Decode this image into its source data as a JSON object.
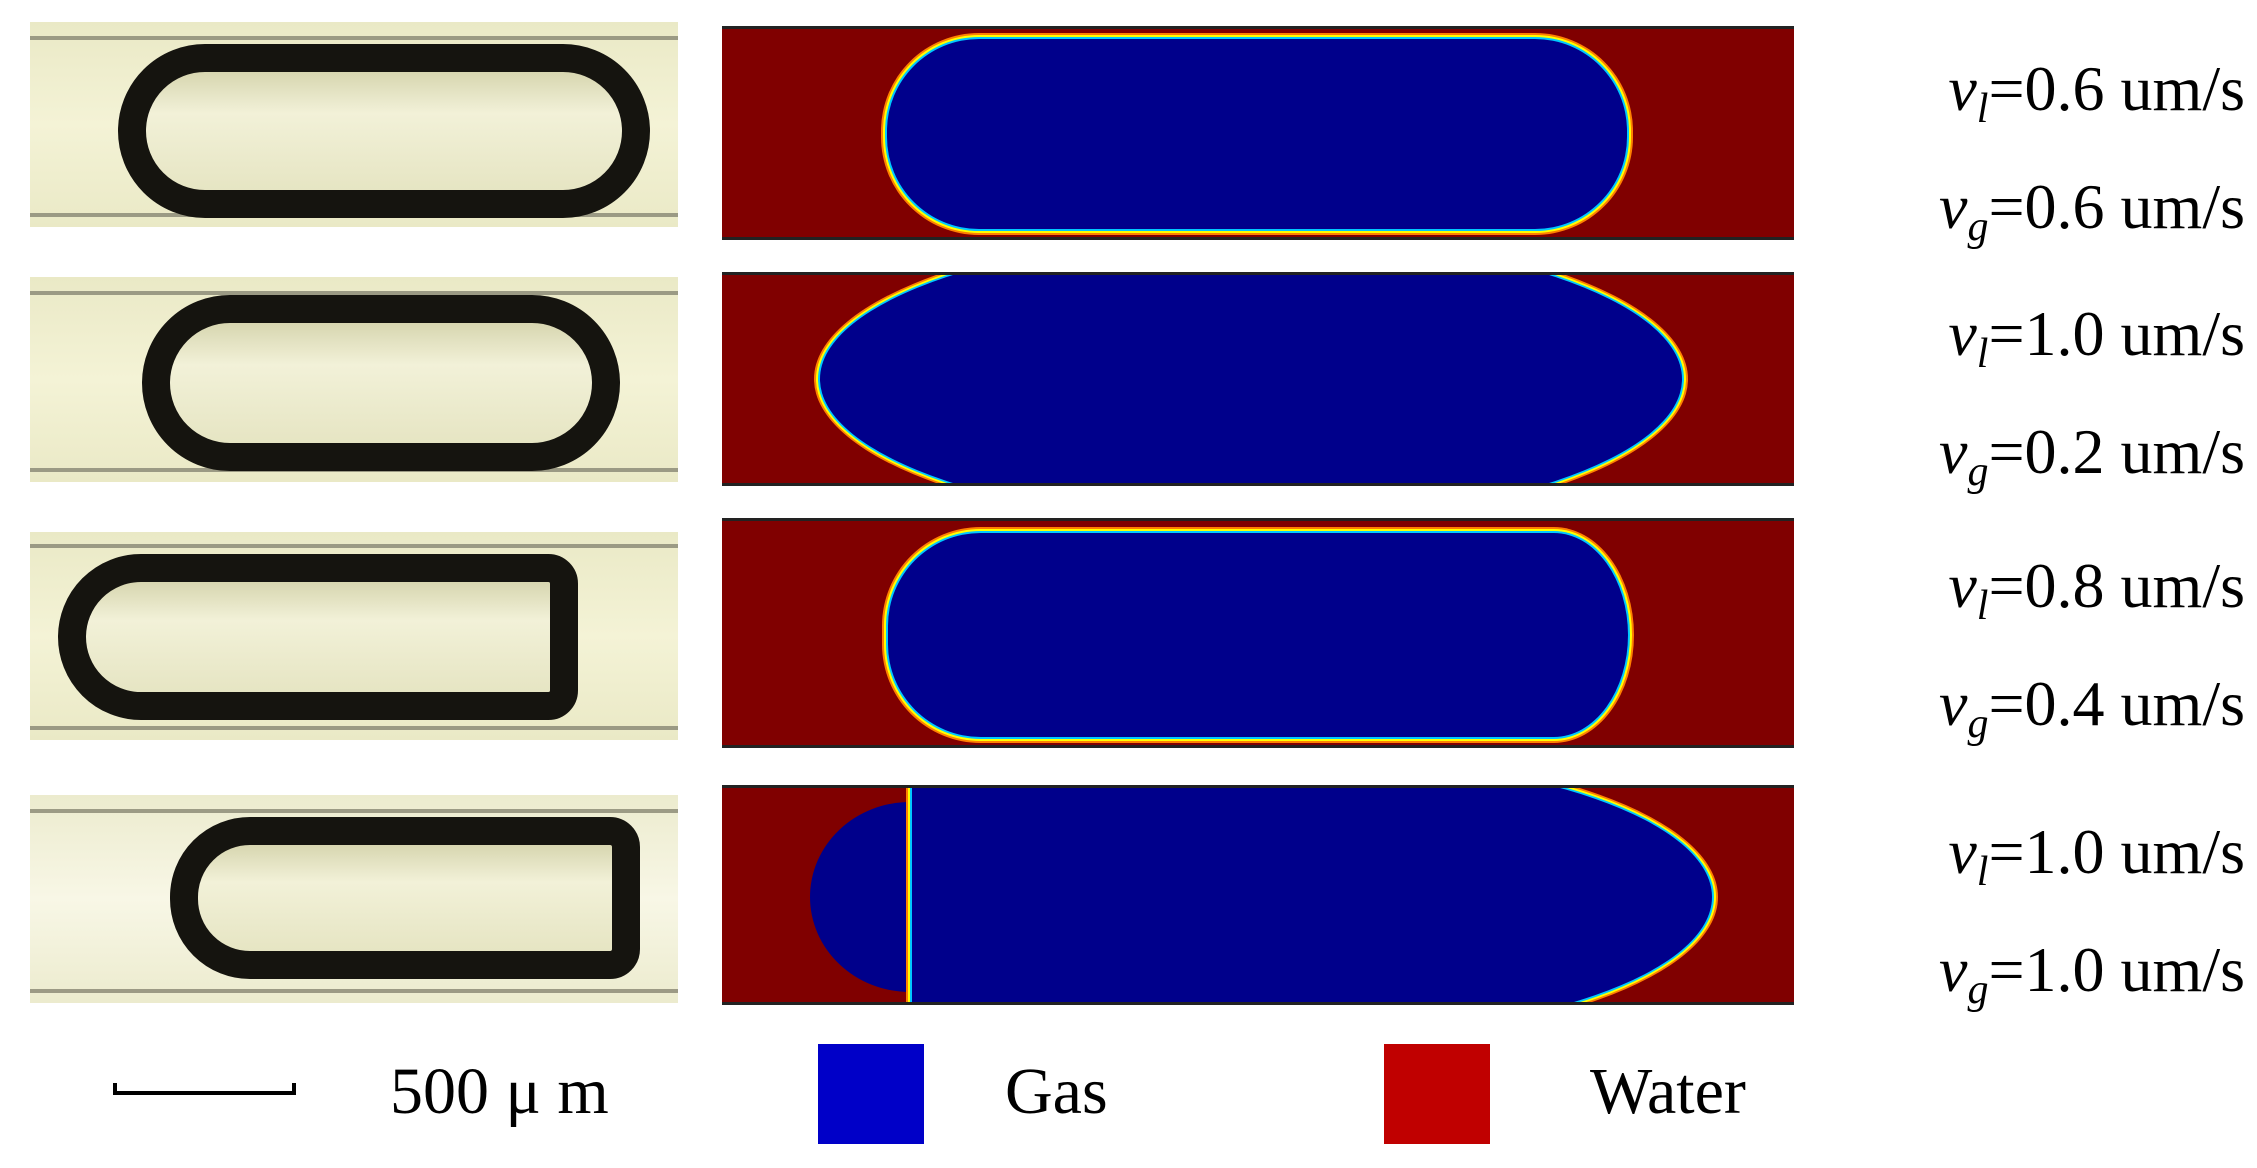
{
  "rows": [
    {
      "vl_value": "=0.6 um/s",
      "vg_value": "=0.6 um/s"
    },
    {
      "vl_value": "=1.0 um/s",
      "vg_value": "=0.2 um/s"
    },
    {
      "vl_value": "=0.8 um/s",
      "vg_value": "=0.4 um/s"
    },
    {
      "vl_value": "=1.0 um/s",
      "vg_value": "=1.0 um/s"
    }
  ],
  "symbols": {
    "v": "v",
    "liquid_sub": "l",
    "gas_sub": "g"
  },
  "scale_label": "500 μ m",
  "legend": [
    {
      "label": "Gas",
      "color": "#0000c8"
    },
    {
      "label": "Water",
      "color": "#c00000"
    }
  ]
}
